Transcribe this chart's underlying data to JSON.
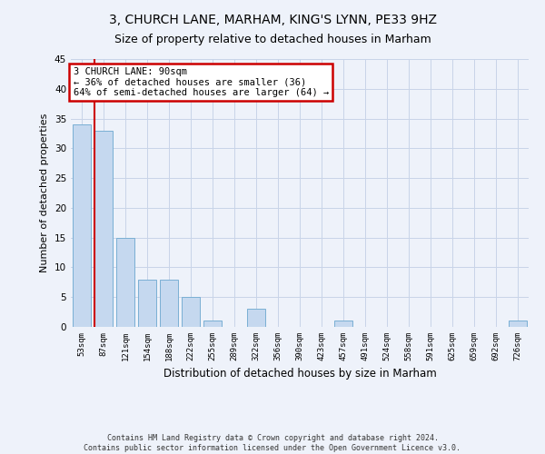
{
  "title1": "3, CHURCH LANE, MARHAM, KING'S LYNN, PE33 9HZ",
  "title2": "Size of property relative to detached houses in Marham",
  "xlabel": "Distribution of detached houses by size in Marham",
  "ylabel": "Number of detached properties",
  "categories": [
    "53sqm",
    "87sqm",
    "121sqm",
    "154sqm",
    "188sqm",
    "222sqm",
    "255sqm",
    "289sqm",
    "322sqm",
    "356sqm",
    "390sqm",
    "423sqm",
    "457sqm",
    "491sqm",
    "524sqm",
    "558sqm",
    "591sqm",
    "625sqm",
    "659sqm",
    "692sqm",
    "726sqm"
  ],
  "values": [
    34,
    33,
    15,
    8,
    8,
    5,
    1,
    0,
    3,
    0,
    0,
    0,
    1,
    0,
    0,
    0,
    0,
    0,
    0,
    0,
    1
  ],
  "bar_color": "#c5d8ef",
  "bar_edge_color": "#7aafd4",
  "vline_x_index": 1,
  "vline_color": "#cc0000",
  "ylim": [
    0,
    45
  ],
  "yticks": [
    0,
    5,
    10,
    15,
    20,
    25,
    30,
    35,
    40,
    45
  ],
  "annotation_title": "3 CHURCH LANE: 90sqm",
  "annotation_line1": "← 36% of detached houses are smaller (36)",
  "annotation_line2": "64% of semi-detached houses are larger (64) →",
  "annotation_box_color": "#cc0000",
  "footer1": "Contains HM Land Registry data © Crown copyright and database right 2024.",
  "footer2": "Contains public sector information licensed under the Open Government Licence v3.0.",
  "bg_color": "#eef2fa",
  "grid_color": "#c8d4e8",
  "title1_fontsize": 10,
  "title2_fontsize": 9,
  "ylabel_fontsize": 8,
  "xlabel_fontsize": 8.5
}
